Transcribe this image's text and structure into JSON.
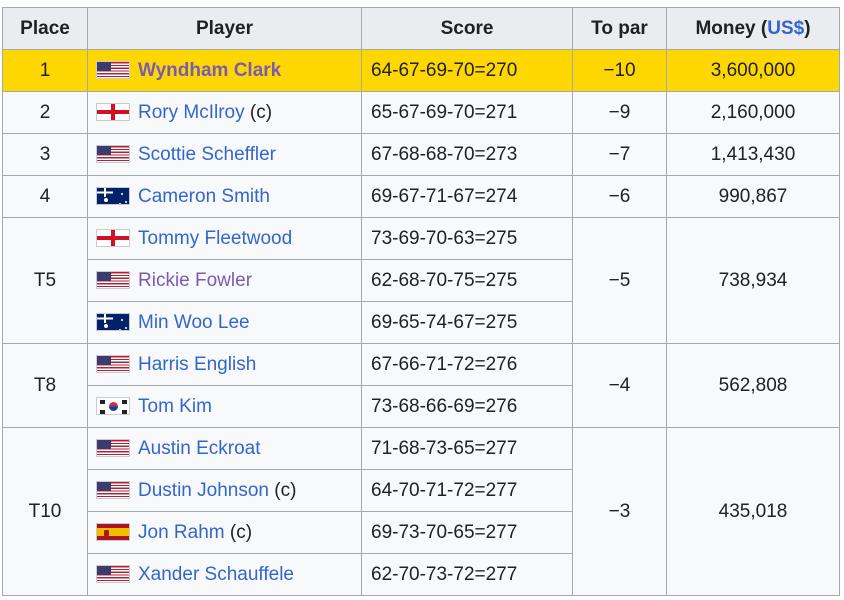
{
  "headers": {
    "place": "Place",
    "player": "Player",
    "score": "Score",
    "to_par": "To par",
    "money_prefix": "Money (",
    "money_currency": "US$",
    "money_suffix": ")"
  },
  "rows": [
    {
      "place": "1",
      "flag": "united-states-flag-icon",
      "player": "Wyndham Clark",
      "suffix": "",
      "score": "64-67-69-70=270",
      "to_par": "−10",
      "money": "3,600,000"
    },
    {
      "place": "2",
      "flag": "northern-ireland-flag-icon",
      "player": "Rory McIlroy",
      "suffix": "(c)",
      "score": "65-67-69-70=271",
      "to_par": "−9",
      "money": "2,160,000"
    },
    {
      "place": "3",
      "flag": "united-states-flag-icon",
      "player": "Scottie Scheffler",
      "suffix": "",
      "score": "67-68-68-70=273",
      "to_par": "−7",
      "money": "1,413,430"
    },
    {
      "place": "4",
      "flag": "australia-flag-icon",
      "player": "Cameron Smith",
      "suffix": "",
      "score": "69-67-71-67=274",
      "to_par": "−6",
      "money": "990,867"
    },
    {
      "place": "T5",
      "flag": "england-flag-icon",
      "player": "Tommy Fleetwood",
      "suffix": "",
      "score": "73-69-70-63=275",
      "to_par": "−5",
      "money": "738,934"
    },
    {
      "place": "",
      "flag": "united-states-flag-icon",
      "player": "Rickie Fowler",
      "suffix": "",
      "score": "62-68-70-75=275",
      "to_par": "",
      "money": ""
    },
    {
      "place": "",
      "flag": "australia-flag-icon",
      "player": "Min Woo Lee",
      "suffix": "",
      "score": "69-65-74-67=275",
      "to_par": "",
      "money": ""
    },
    {
      "place": "T8",
      "flag": "united-states-flag-icon",
      "player": "Harris English",
      "suffix": "",
      "score": "67-66-71-72=276",
      "to_par": "−4",
      "money": "562,808"
    },
    {
      "place": "",
      "flag": "south-korea-flag-icon",
      "player": "Tom Kim",
      "suffix": "",
      "score": "73-68-66-69=276",
      "to_par": "",
      "money": ""
    },
    {
      "place": "T10",
      "flag": "united-states-flag-icon",
      "player": "Austin Eckroat",
      "suffix": "",
      "score": "71-68-73-65=277",
      "to_par": "−3",
      "money": "435,018"
    },
    {
      "place": "",
      "flag": "united-states-flag-icon",
      "player": "Dustin Johnson",
      "suffix": "(c)",
      "score": "64-70-71-72=277",
      "to_par": "",
      "money": ""
    },
    {
      "place": "",
      "flag": "spain-flag-icon",
      "player": "Jon Rahm",
      "suffix": "(c)",
      "score": "69-73-70-65=277",
      "to_par": "",
      "money": ""
    },
    {
      "place": "",
      "flag": "united-states-flag-icon",
      "player": "Xander Schauffele",
      "suffix": "",
      "score": "62-70-73-72=277",
      "to_par": "",
      "money": ""
    }
  ],
  "colors": {
    "winner_highlight": "#ffd700",
    "link": "#3366cc",
    "visited_link": "#795cb2",
    "header_bg": "#eaecf0",
    "cell_bg": "#f8f9fa",
    "border": "#a2a9b1"
  }
}
